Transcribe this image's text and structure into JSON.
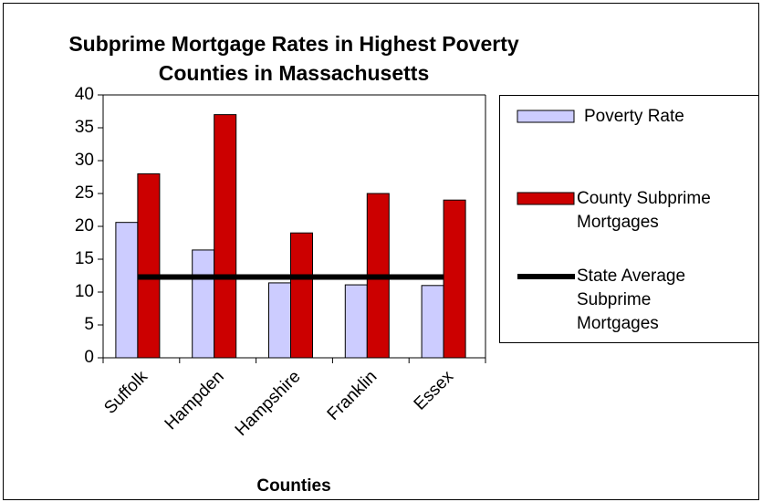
{
  "chart_data": {
    "type": "bar",
    "title": "Subprime Mortgage Rates in Highest Poverty Counties in Massachusetts",
    "x_label": "Counties",
    "categories": [
      "Suffolk",
      "Hampden",
      "Hampshire",
      "Franklin",
      "Essex"
    ],
    "series": [
      {
        "name": "Poverty Rate",
        "color": "#ccccff",
        "type": "bar",
        "values": [
          20.6,
          16.4,
          11.4,
          11.1,
          11.0
        ]
      },
      {
        "name": "County Subprime Mortgages",
        "color": "#cc0000",
        "type": "bar",
        "values": [
          28,
          37,
          19,
          25,
          24
        ]
      },
      {
        "name": "State Average Subprime Mortgages",
        "color": "#000000",
        "type": "line",
        "values": [
          12.3,
          12.3,
          12.3,
          12.3,
          12.3
        ]
      }
    ],
    "ylim": [
      0,
      40
    ],
    "yticks": [
      0,
      5,
      10,
      15,
      20,
      25,
      30,
      35,
      40
    ],
    "grid": false,
    "legend": "right"
  }
}
